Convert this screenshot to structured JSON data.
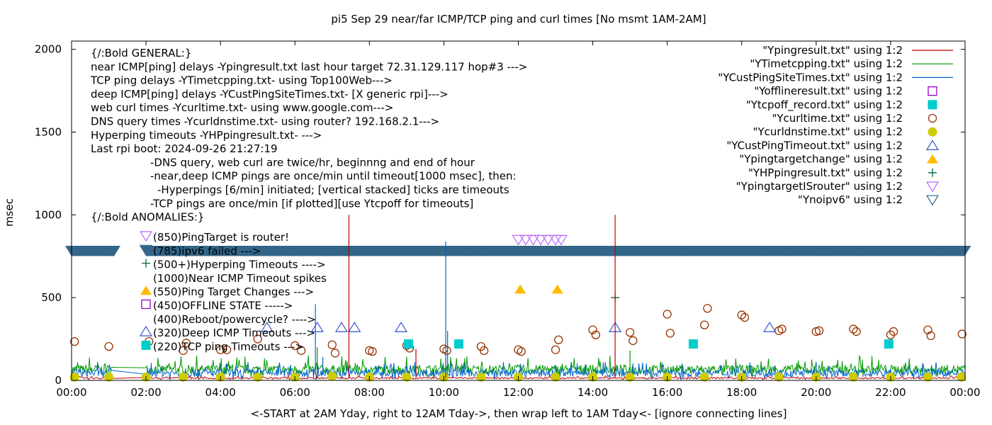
{
  "chart_data": {
    "type": "line",
    "title": "pi5 Sep 29  near/far ICMP/TCP ping and curl times [No msmt 1AM-2AM]",
    "xlabel": "<-START at 2AM Yday, right to 12AM Tday->, then wrap left to 1AM Tday<- [ignore connecting lines]",
    "ylabel": "msec",
    "xlim": [
      0,
      24
    ],
    "ylim": [
      0,
      2050
    ],
    "x_ticks": [
      "00:00",
      "02:00",
      "04:00",
      "06:00",
      "08:00",
      "10:00",
      "12:00",
      "14:00",
      "16:00",
      "18:00",
      "20:00",
      "22:00",
      "00:00"
    ],
    "y_ticks": [
      0,
      500,
      1000,
      1500,
      2000
    ],
    "grid": false,
    "legend_position": "top-right",
    "colors": {
      "ping": "#c00000",
      "tcp": "#009900",
      "cust": "#0066cc",
      "offline": "#9900cc",
      "tcpoff": "#00cccc",
      "curl": "#993300",
      "dns": "#cccc00",
      "custTimeout": "#3355cc",
      "targetchange": "#ffbb00",
      "hpping": "#006633",
      "router": "#bb66ff",
      "noipv6": "#336688"
    },
    "legend": [
      {
        "label": "\"Ypingresult.txt\" using 1:2",
        "glyph": "line",
        "color": "#c00000"
      },
      {
        "label": "\"YTimetcpping.txt\" using 1:2",
        "glyph": "line",
        "color": "#009900"
      },
      {
        "label": "\"YCustPingSiteTimes.txt\" using 1:2",
        "glyph": "line",
        "color": "#0066cc"
      },
      {
        "label": "\"Yofflineresult.txt\" using 1:2",
        "glyph": "open-square",
        "color": "#9900cc"
      },
      {
        "label": "\"Ytcpoff_record.txt\" using 1:2",
        "glyph": "filled-square",
        "color": "#00cccc"
      },
      {
        "label": "\"Ycurltime.txt\" using 1:2",
        "glyph": "open-circle",
        "color": "#993300"
      },
      {
        "label": "\"Ycurldnstime.txt\" using 1:2",
        "glyph": "filled-circle",
        "color": "#cccc00"
      },
      {
        "label": "\"YCustPingTimeout.txt\" using 1:2",
        "glyph": "open-triangle",
        "color": "#3355cc"
      },
      {
        "label": "\"Ypingtargetchange\" using 1:2",
        "glyph": "filled-triangle",
        "color": "#ffbb00"
      },
      {
        "label": "\"YHPpingresult.txt\" using 1:2",
        "glyph": "plus",
        "color": "#006633"
      },
      {
        "label": "\"YpingtargetISrouter\" using 1:2",
        "glyph": "open-down-triangle",
        "color": "#bb66ff"
      },
      {
        "label": "\"Ynoipv6\" using 1:2",
        "glyph": "open-down-triangle",
        "color": "#336688"
      }
    ],
    "annotations": [
      {
        "text": "{/:Bold GENERAL:}",
        "indent": 0
      },
      {
        "text": "near ICMP[ping] delays -Ypingresult.txt last hour target 72.31.129.117 hop#3 --->",
        "indent": 0
      },
      {
        "text": "TCP ping delays -YTimetcpping.txt- using Top100Web--->",
        "indent": 0
      },
      {
        "text": "deep ICMP[ping] delays -YCustPingSiteTimes.txt- [X generic rpi]--->",
        "indent": 0
      },
      {
        "text": "web curl times -Ycurltime.txt- using www.google.com--->",
        "indent": 0
      },
      {
        "text": "DNS query times -Ycurldnstime.txt- using router? 192.168.2.1--->",
        "indent": 0
      },
      {
        "text": "Hyperping timeouts -YHPpingresult.txt- --->",
        "indent": 0
      },
      {
        "text": "Last rpi boot: 2024-09-26 21:27:19",
        "indent": 0
      },
      {
        "text": "-DNS query, web curl are twice/hr, beginnng and end of hour",
        "indent": 1
      },
      {
        "text": "-near,deep ICMP pings are once/min until timeout[1000 msec], then:",
        "indent": 1
      },
      {
        "text": "-Hyperpings [6/min] initiated; [vertical stacked] ticks are timeouts",
        "indent": 2
      },
      {
        "text": "-TCP pings are once/min [if plotted][use Ytcpoff for timeouts]",
        "indent": 1
      },
      {
        "text": "{/:Bold ANOMALIES:}",
        "indent": 0
      }
    ],
    "anomalies": [
      {
        "glyph": "open-down-triangle",
        "color": "#bb66ff",
        "text": "(850)PingTarget is router!"
      },
      {
        "glyph": "open-down-triangle",
        "color": "#336688",
        "text": "(785)ipv6 failed --->"
      },
      {
        "glyph": "plus",
        "color": "#006633",
        "text": "(500+)Hyperping Timeouts ---->"
      },
      {
        "glyph": "none",
        "color": "#c00000",
        "text": "(1000)Near ICMP Timeout spikes"
      },
      {
        "glyph": "filled-triangle",
        "color": "#ffbb00",
        "text": "(550)Ping Target Changes --->"
      },
      {
        "glyph": "open-square",
        "color": "#9900cc",
        "text": "(450)OFFLINE STATE ----->"
      },
      {
        "glyph": "none",
        "color": "#993300",
        "text": "(400)Reboot/powercycle? ---->"
      },
      {
        "glyph": "open-triangle",
        "color": "#3355cc",
        "text": "(320)Deep ICMP Timeouts --->"
      },
      {
        "glyph": "filled-square",
        "color": "#00cccc",
        "text": "(220)TCP ping Timeouts --->"
      }
    ],
    "series": [
      {
        "name": "Ycurltime.txt",
        "marker": "open-circle",
        "color": "#993300",
        "x": [
          0.08,
          1.0,
          2.08,
          3.0,
          3.08,
          4.0,
          4.17,
          5.0,
          6.0,
          6.17,
          7.0,
          7.08,
          8.0,
          8.08,
          9.0,
          9.08,
          10.0,
          10.08,
          11.0,
          11.08,
          12.0,
          12.08,
          13.0,
          13.08,
          14.0,
          14.08,
          15.0,
          15.08,
          16.0,
          16.08,
          17.0,
          17.08,
          18.0,
          18.08,
          19.0,
          19.08,
          20.0,
          20.08,
          21.0,
          21.08,
          22.0,
          22.08,
          23.0,
          23.08,
          23.92
        ],
        "y": [
          235,
          205,
          235,
          180,
          225,
          185,
          185,
          250,
          210,
          180,
          215,
          165,
          180,
          175,
          210,
          195,
          190,
          180,
          205,
          180,
          185,
          175,
          185,
          245,
          305,
          275,
          290,
          240,
          400,
          285,
          335,
          435,
          395,
          380,
          300,
          310,
          295,
          300,
          310,
          295,
          275,
          295,
          305,
          270,
          280
        ]
      },
      {
        "name": "YCustPingTimeout.txt",
        "marker": "open-triangle",
        "color": "#3355cc",
        "x": [
          5.25,
          6.6,
          7.25,
          7.6,
          8.85,
          14.6,
          18.75
        ],
        "y": [
          320,
          320,
          320,
          320,
          320,
          320,
          320
        ]
      },
      {
        "name": "Ytcpoff_record.txt",
        "marker": "filled-square",
        "color": "#00cccc",
        "x": [
          9.05,
          10.4,
          16.7,
          21.95
        ],
        "y": [
          220,
          220,
          220,
          220
        ]
      },
      {
        "name": "Ypingtargetchange",
        "marker": "filled-triangle",
        "color": "#ffbb00",
        "x": [
          12.05,
          13.05
        ],
        "y": [
          550,
          550
        ]
      },
      {
        "name": "YHPpingresult.txt",
        "marker": "plus",
        "color": "#006633",
        "x": [
          14.6
        ],
        "y": [
          500
        ]
      },
      {
        "name": "YpingtargetISrouter",
        "marker": "open-down-triangle",
        "color": "#bb66ff",
        "x": [
          12.0,
          12.2,
          12.4,
          12.6,
          12.8,
          13.0,
          13.15
        ],
        "y": [
          850,
          850,
          850,
          850,
          850,
          850,
          850
        ]
      },
      {
        "name": "Ynoipv6",
        "marker": "open-down-triangle",
        "color": "#336688",
        "x_start": 0,
        "x_end": 24,
        "gap": [
          1.15,
          2.0
        ],
        "y": [
          785
        ]
      },
      {
        "name": "Ycurldnstime.txt",
        "marker": "filled-circle",
        "color": "#cccc00",
        "x": [
          0.08,
          1.0,
          2.0,
          3.0,
          4.0,
          5.0,
          6.0,
          7.0,
          8.0,
          9.0,
          10.0,
          11.0,
          12.0,
          13.0,
          14.0,
          15.0,
          16.0,
          17.0,
          18.0,
          19.0,
          20.0,
          21.0,
          22.0,
          23.0,
          23.9
        ],
        "y": [
          20,
          20,
          20,
          20,
          20,
          20,
          20,
          25,
          20,
          20,
          20,
          20,
          20,
          20,
          20,
          20,
          20,
          20,
          20,
          20,
          20,
          20,
          20,
          20,
          20
        ]
      },
      {
        "name": "Ypingresult.txt",
        "type": "spikes",
        "color": "#c00000",
        "baseline": 15,
        "x": [
          6.5,
          6.6,
          7.45,
          9.25,
          10.05,
          14.6
        ],
        "y": [
          60,
          110,
          1000,
          190,
          130,
          1000
        ]
      },
      {
        "name": "YCustPingSiteTimes.txt",
        "type": "spikes",
        "color": "#0066cc",
        "baseline": 35,
        "x": [
          6.55,
          6.75,
          10.05,
          10.1
        ],
        "y": [
          460,
          140,
          840,
          300
        ]
      },
      {
        "name": "YTimetcpping.txt",
        "type": "noise",
        "color": "#009900",
        "baseline": 60,
        "x": [
          6.6,
          15.0
        ],
        "y": [
          200,
          180
        ]
      }
    ]
  }
}
